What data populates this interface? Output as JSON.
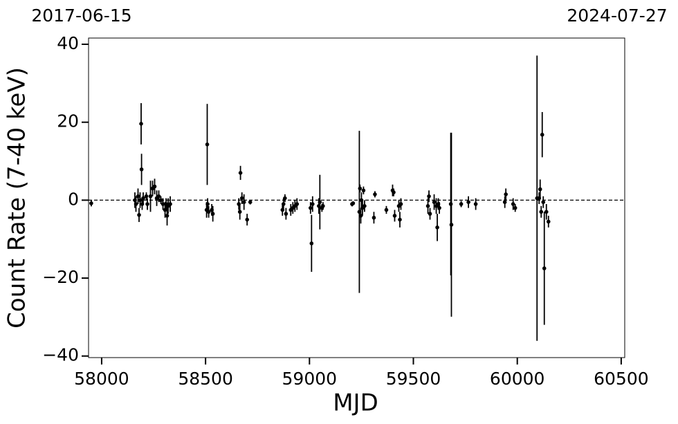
{
  "chart_data": {
    "type": "errorbar",
    "xlabel": "MJD",
    "ylabel": "Count Rate (7-40 keV)",
    "annotations": [
      "2017-06-15",
      "2024-07-27"
    ],
    "xlim": [
      57937,
      60517
    ],
    "ylim": [
      -40.4,
      41.6
    ],
    "xticks": [
      58000,
      58500,
      59000,
      59500,
      60000,
      60500
    ],
    "yticks": [
      {
        "value": -40,
        "label": "−40"
      },
      {
        "value": -20,
        "label": "−20"
      },
      0,
      20,
      40
    ],
    "hline": 0,
    "color": "#000000",
    "x": [
      57950,
      58160,
      58165,
      58175,
      58180,
      58185,
      58190,
      58192,
      58195,
      58200,
      58215,
      58220,
      58235,
      58245,
      58255,
      58265,
      58275,
      58285,
      58295,
      58305,
      58310,
      58315,
      58320,
      58330,
      58505,
      58508,
      58510,
      58515,
      58530,
      58535,
      58660,
      58665,
      58668,
      58675,
      58685,
      58700,
      58715,
      58870,
      58875,
      58882,
      58887,
      58910,
      58920,
      58930,
      58940,
      59005,
      59010,
      59015,
      59045,
      59050,
      59060,
      59065,
      59205,
      59210,
      59240,
      59243,
      59247,
      59250,
      59255,
      59260,
      59265,
      59310,
      59315,
      59370,
      59400,
      59405,
      59410,
      59430,
      59435,
      59440,
      59570,
      59575,
      59580,
      59600,
      59610,
      59615,
      59620,
      59625,
      59680,
      59683,
      59730,
      59765,
      59800,
      59940,
      59945,
      59980,
      59990,
      60095,
      60105,
      60110,
      60115,
      60120,
      60125,
      60130,
      60140,
      60150
    ],
    "values": [
      -0.8,
      0,
      -1,
      1,
      -3.8,
      0,
      19.6,
      7.9,
      -1,
      0.5,
      1,
      -1,
      1,
      3,
      3.5,
      0.5,
      1,
      0,
      -1,
      -2.5,
      -1,
      -4,
      -1.5,
      -1,
      -2.5,
      14.3,
      -1,
      -3,
      -2.5,
      -3.5,
      -1,
      -3,
      7,
      0.5,
      -0.5,
      -5,
      -0.5,
      -2.5,
      -1,
      0.5,
      -3.5,
      -2.5,
      -2,
      -1.5,
      -1,
      -2,
      -11.1,
      -1,
      -1.5,
      -0.5,
      -2,
      -1.5,
      -1,
      -0.8,
      -3,
      3,
      -4,
      0,
      -2,
      2.5,
      -1.5,
      -4.5,
      1.5,
      -2.5,
      2.5,
      2,
      -4,
      -1.5,
      -5,
      -1,
      -1.5,
      1,
      -3.5,
      -0.5,
      -1.5,
      -7,
      -1,
      -2,
      -1,
      -6.3,
      -1,
      -0.5,
      -1,
      -0.5,
      1.5,
      -1,
      -2,
      0.5,
      0.5,
      2.8,
      -3,
      16.8,
      -0.5,
      -17.5,
      -3,
      -5.5
    ],
    "errors": [
      0.8,
      2,
      2,
      2,
      1.8,
      2,
      5.3,
      4,
      1.5,
      1.5,
      1,
      1.5,
      4,
      2,
      2,
      2,
      1.5,
      1,
      1.5,
      2,
      1.5,
      2.5,
      2,
      2,
      2,
      10.4,
      1.5,
      1.5,
      1.5,
      2,
      1.5,
      2,
      1.8,
      1.5,
      2,
      1.5,
      0.6,
      1.5,
      1.5,
      1,
      1.5,
      1.5,
      1.5,
      1.5,
      1.5,
      1.5,
      7.3,
      2,
      2,
      7,
      1,
      1,
      0.6,
      0.5,
      20.8,
      1,
      2,
      2,
      2,
      1,
      1.5,
      1.5,
      0.8,
      1,
      1.5,
      1,
      1.5,
      1.5,
      2,
      1.5,
      2,
      1.5,
      1.5,
      2,
      2,
      3.5,
      1.5,
      1.5,
      18.3,
      23.6,
      0.8,
      1.5,
      1.5,
      1.5,
      1.5,
      1.5,
      1,
      36.6,
      1.5,
      2.5,
      1.5,
      5.8,
      1.5,
      14.5,
      2,
      1.5
    ]
  }
}
